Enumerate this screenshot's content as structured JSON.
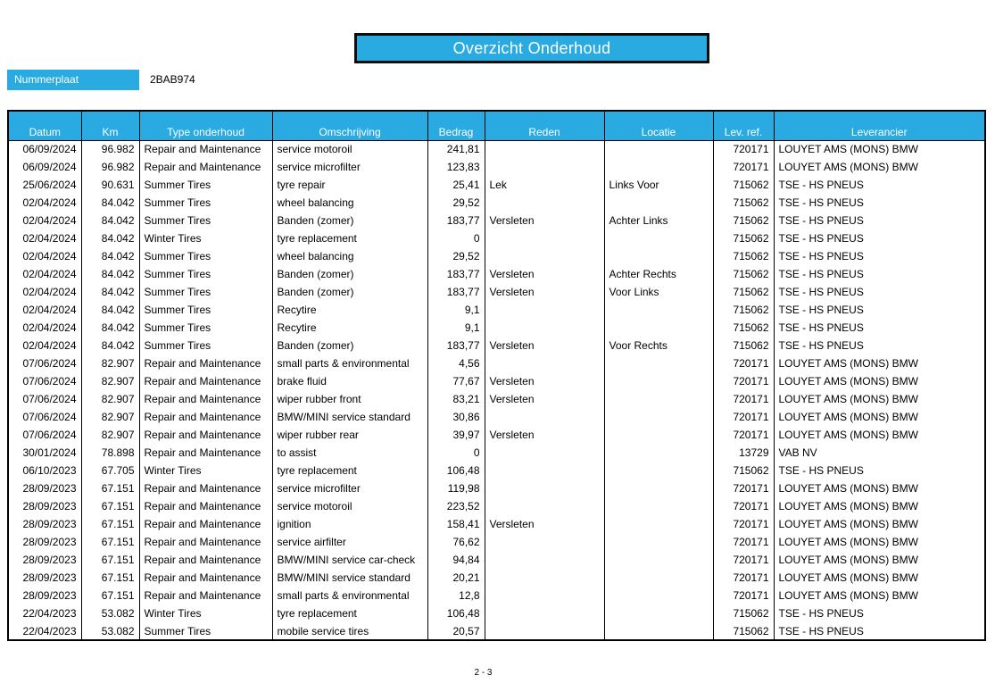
{
  "page": {
    "title": "Overzicht Onderhoud",
    "footer_page": "2 - 3"
  },
  "vehicle": {
    "plate_label": "Nummerplaat",
    "plate_value": "2BAB974"
  },
  "colors": {
    "accent_cyan": "#29ABE2",
    "border": "#000000",
    "header_text": "#FFFFFF"
  },
  "table": {
    "columns": [
      "Datum",
      "Km",
      "Type onderhoud",
      "Omschrijving",
      "Bedrag",
      "Reden",
      "Locatie",
      "Lev. ref.",
      "Leverancier"
    ],
    "rows": [
      [
        "06/09/2024",
        "96.982",
        "Repair and Maintenance",
        "service motoroil",
        "241,81",
        "",
        "",
        "720171",
        "LOUYET AMS (MONS) BMW"
      ],
      [
        "06/09/2024",
        "96.982",
        "Repair and Maintenance",
        "service microfilter",
        "123,83",
        "",
        "",
        "720171",
        "LOUYET AMS (MONS) BMW"
      ],
      [
        "25/06/2024",
        "90.631",
        "Summer Tires",
        "tyre repair",
        "25,41",
        "Lek",
        "Links Voor",
        "715062",
        "TSE - HS PNEUS"
      ],
      [
        "02/04/2024",
        "84.042",
        "Summer Tires",
        "wheel balancing",
        "29,52",
        "",
        "",
        "715062",
        "TSE - HS PNEUS"
      ],
      [
        "02/04/2024",
        "84.042",
        "Summer Tires",
        "Banden (zomer)",
        "183,77",
        "Versleten",
        "Achter Links",
        "715062",
        "TSE - HS PNEUS"
      ],
      [
        "02/04/2024",
        "84.042",
        "Winter Tires",
        "tyre replacement",
        "0",
        "",
        "",
        "715062",
        "TSE - HS PNEUS"
      ],
      [
        "02/04/2024",
        "84.042",
        "Summer Tires",
        "wheel balancing",
        "29,52",
        "",
        "",
        "715062",
        "TSE - HS PNEUS"
      ],
      [
        "02/04/2024",
        "84.042",
        "Summer Tires",
        "Banden (zomer)",
        "183,77",
        "Versleten",
        "Achter Rechts",
        "715062",
        "TSE - HS PNEUS"
      ],
      [
        "02/04/2024",
        "84.042",
        "Summer Tires",
        "Banden (zomer)",
        "183,77",
        "Versleten",
        "Voor Links",
        "715062",
        "TSE - HS PNEUS"
      ],
      [
        "02/04/2024",
        "84.042",
        "Summer Tires",
        "Recytire",
        "9,1",
        "",
        "",
        "715062",
        "TSE - HS PNEUS"
      ],
      [
        "02/04/2024",
        "84.042",
        "Summer Tires",
        "Recytire",
        "9,1",
        "",
        "",
        "715062",
        "TSE - HS PNEUS"
      ],
      [
        "02/04/2024",
        "84.042",
        "Summer Tires",
        "Banden (zomer)",
        "183,77",
        "Versleten",
        "Voor Rechts",
        "715062",
        "TSE - HS PNEUS"
      ],
      [
        "07/06/2024",
        "82.907",
        "Repair and Maintenance",
        "small parts & environmental",
        "4,56",
        "",
        "",
        "720171",
        "LOUYET AMS (MONS) BMW"
      ],
      [
        "07/06/2024",
        "82.907",
        "Repair and Maintenance",
        "brake fluid",
        "77,67",
        "Versleten",
        "",
        "720171",
        "LOUYET AMS (MONS) BMW"
      ],
      [
        "07/06/2024",
        "82.907",
        "Repair and Maintenance",
        "wiper rubber front",
        "83,21",
        "Versleten",
        "",
        "720171",
        "LOUYET AMS (MONS) BMW"
      ],
      [
        "07/06/2024",
        "82.907",
        "Repair and Maintenance",
        "BMW/MINI service standard",
        "30,86",
        "",
        "",
        "720171",
        "LOUYET AMS (MONS) BMW"
      ],
      [
        "07/06/2024",
        "82.907",
        "Repair and Maintenance",
        "wiper rubber rear",
        "39,97",
        "Versleten",
        "",
        "720171",
        "LOUYET AMS (MONS) BMW"
      ],
      [
        "30/01/2024",
        "78.898",
        "Repair and Maintenance",
        "to assist",
        "0",
        "",
        "",
        "13729",
        "VAB NV"
      ],
      [
        "06/10/2023",
        "67.705",
        "Winter Tires",
        "tyre replacement",
        "106,48",
        "",
        "",
        "715062",
        "TSE - HS PNEUS"
      ],
      [
        "28/09/2023",
        "67.151",
        "Repair and Maintenance",
        "service microfilter",
        "119,98",
        "",
        "",
        "720171",
        "LOUYET AMS (MONS) BMW"
      ],
      [
        "28/09/2023",
        "67.151",
        "Repair and Maintenance",
        "service motoroil",
        "223,52",
        "",
        "",
        "720171",
        "LOUYET AMS (MONS) BMW"
      ],
      [
        "28/09/2023",
        "67.151",
        "Repair and Maintenance",
        "ignition",
        "158,41",
        "Versleten",
        "",
        "720171",
        "LOUYET AMS (MONS) BMW"
      ],
      [
        "28/09/2023",
        "67.151",
        "Repair and Maintenance",
        "service airfilter",
        "76,62",
        "",
        "",
        "720171",
        "LOUYET AMS (MONS) BMW"
      ],
      [
        "28/09/2023",
        "67.151",
        "Repair and Maintenance",
        "BMW/MINI service car-check",
        "94,84",
        "",
        "",
        "720171",
        "LOUYET AMS (MONS) BMW"
      ],
      [
        "28/09/2023",
        "67.151",
        "Repair and Maintenance",
        "BMW/MINI service standard",
        "20,21",
        "",
        "",
        "720171",
        "LOUYET AMS (MONS) BMW"
      ],
      [
        "28/09/2023",
        "67.151",
        "Repair and Maintenance",
        "small parts & environmental",
        "12,8",
        "",
        "",
        "720171",
        "LOUYET AMS (MONS) BMW"
      ],
      [
        "22/04/2023",
        "53.082",
        "Winter Tires",
        "tyre replacement",
        "106,48",
        "",
        "",
        "715062",
        "TSE - HS PNEUS"
      ],
      [
        "22/04/2023",
        "53.082",
        "Summer Tires",
        "mobile service tires",
        "20,57",
        "",
        "",
        "715062",
        "TSE - HS PNEUS"
      ]
    ]
  }
}
